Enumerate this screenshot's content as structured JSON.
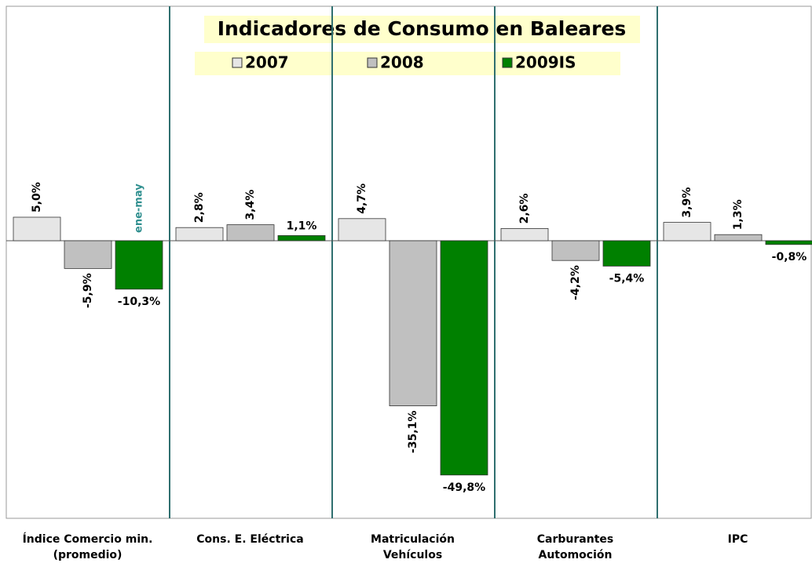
{
  "chart_data": {
    "type": "bar",
    "title": "Indicadores de Consumo en Baleares",
    "categories": [
      "Índice Comercio min.\n(promedio)",
      "Cons. E. Eléctrica",
      "Matriculación\nVehículos",
      "Carburantes\nAutomoción",
      "IPC"
    ],
    "series": [
      {
        "name": "2007",
        "color": "#e6e6e6",
        "values": [
          5.0,
          2.8,
          4.7,
          2.6,
          3.9
        ],
        "value_labels": [
          "5,0%",
          "2,8%",
          "4,7%",
          "2,6%",
          "3,9%"
        ]
      },
      {
        "name": "2008",
        "color": "#c0c0c0",
        "values": [
          -5.9,
          3.4,
          -35.1,
          -4.2,
          1.3
        ],
        "value_labels": [
          "-5,9%",
          "3,4%",
          "-35,1%",
          "-4,2%",
          "1,3%"
        ]
      },
      {
        "name": "2009IS",
        "color": "#008000",
        "values": [
          -10.3,
          1.1,
          -49.8,
          -5.4,
          -0.8
        ],
        "value_labels": [
          "-10,3%",
          "1,1%",
          "-49,8%",
          "-5,4%",
          "-0,8%"
        ]
      }
    ],
    "annotations": [
      "ene-may"
    ],
    "ylim": [
      -60,
      50
    ]
  }
}
